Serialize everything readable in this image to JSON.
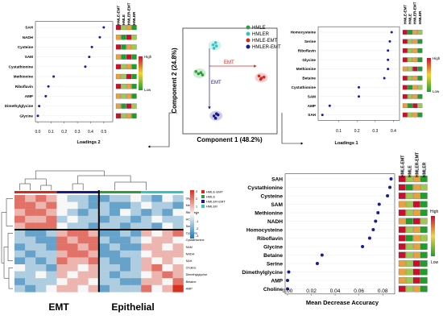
{
  "colors": {
    "hmle": "#2e9e3a",
    "hmler": "#34c4c4",
    "hmle_emt": "#d42a22",
    "hmler_emt": "#1a1a8c",
    "dot": "#1a1aa0",
    "scale_high": "#c8102e",
    "scale_mid": "#f2d43a",
    "scale_low": "#1f9e2c",
    "hm_high": "#d7301f",
    "hm_mid": "#f7f7f7",
    "hm_low": "#1f78b4"
  },
  "scale_labels": {
    "high": "High",
    "low": "Low"
  },
  "group_labels": [
    "HMLE-EMT",
    "HMLE",
    "HMLER-EMT",
    "HMLER"
  ],
  "heatmap_text": {
    "emt": "EMT",
    "epithelial": "Epithelial"
  },
  "chart_data": [
    {
      "id": "pca",
      "type": "scatter",
      "xlabel": "Component 1 (48.2%)",
      "ylabel": "Component 2 (24.8%)",
      "legend": [
        "HMLE",
        "HMLER",
        "HMLE-EMT",
        "HMLER-EMT"
      ],
      "legend_position": "top-right",
      "arrow_labels": [
        "EMT",
        "EMT"
      ],
      "groups": [
        {
          "name": "HMLE",
          "points": [
            [
              -3.4,
              0.6
            ],
            [
              -3.1,
              0.4
            ],
            [
              -2.8,
              0.5
            ],
            [
              -2.6,
              0.3
            ]
          ]
        },
        {
          "name": "HMLER",
          "points": [
            [
              -1.3,
              3.0
            ],
            [
              -1.0,
              3.2
            ],
            [
              -1.2,
              2.7
            ],
            [
              -0.9,
              2.9
            ]
          ]
        },
        {
          "name": "HMLE-EMT",
          "points": [
            [
              4.3,
              0.2
            ],
            [
              4.6,
              0.0
            ],
            [
              4.9,
              0.1
            ],
            [
              4.5,
              -0.1
            ]
          ]
        },
        {
          "name": "HMLER-EMT",
          "points": [
            [
              -1.2,
              -3.4
            ],
            [
              -0.9,
              -3.2
            ],
            [
              -1.0,
              -3.6
            ],
            [
              -0.7,
              -3.3
            ]
          ]
        }
      ]
    },
    {
      "id": "loadings2",
      "type": "scatter",
      "xlabel": "Loadings 2",
      "xlim": [
        0,
        0.55
      ],
      "xticks": [
        "0.0",
        "0.1",
        "0.2",
        "0.3",
        "0.4",
        "0.5"
      ],
      "categories": [
        "SAH",
        "NADH",
        "Cysteine",
        "SAM",
        "Cystathionine",
        "Methionine",
        "Riboflavin",
        "AMP",
        "Dimethylglycine",
        "Glycine"
      ],
      "values": [
        0.5,
        0.47,
        0.41,
        0.39,
        0.36,
        0.12,
        0.08,
        0.06,
        0.01,
        0.0
      ],
      "side_heatmap": [
        [
          3,
          1,
          2,
          0
        ],
        [
          2,
          0,
          3,
          1
        ],
        [
          3,
          0,
          2,
          1
        ],
        [
          2,
          0,
          3,
          0
        ],
        [
          3,
          1,
          2,
          0
        ],
        [
          2,
          1,
          3,
          0
        ],
        [
          3,
          1,
          2,
          0
        ],
        [
          2,
          1,
          2,
          0
        ],
        [
          2,
          0,
          3,
          1
        ],
        [
          3,
          1,
          2,
          0
        ]
      ]
    },
    {
      "id": "loadings1",
      "type": "scatter",
      "xlabel": "Loadings 1",
      "xlim": [
        0,
        0.42
      ],
      "xticks": [
        "0.1",
        "0.2",
        "0.3",
        "0.4"
      ],
      "categories": [
        "Homocysteine",
        "Serine",
        "Riboflavin",
        "Glycine",
        "Methionine",
        "Betaine",
        "Cystathionine",
        "SAM",
        "AMP",
        "SAH"
      ],
      "values": [
        0.39,
        0.38,
        0.37,
        0.37,
        0.37,
        0.35,
        0.21,
        0.21,
        0.05,
        0.01
      ],
      "side_heatmap": [
        [
          3,
          0,
          2,
          1
        ],
        [
          3,
          1,
          2,
          0
        ],
        [
          3,
          1,
          2,
          0
        ],
        [
          3,
          1,
          2,
          0
        ],
        [
          2,
          1,
          3,
          0
        ],
        [
          3,
          1,
          2,
          0
        ],
        [
          3,
          0,
          2,
          1
        ],
        [
          3,
          1,
          2,
          0
        ],
        [
          2,
          0,
          3,
          1
        ],
        [
          3,
          1,
          2,
          0
        ]
      ]
    },
    {
      "id": "heatmap",
      "type": "heatmap",
      "legend": [
        "HMLE-EMT",
        "HMLE",
        "HMLER-EMT",
        "HMLER"
      ],
      "colorbar_ticks": [
        "3",
        "2",
        "1",
        "0",
        "-1",
        "-2",
        "-3"
      ],
      "rows": [
        "Gly",
        "Met",
        "Riboflavin",
        "HCy",
        "Ser",
        "Cysteine",
        "Cystathionine",
        "SAM",
        "NADH",
        "SAH",
        "Choline",
        "Dimethylglycine",
        "Betaine",
        "AMP"
      ],
      "values": [
        [
          2,
          1,
          2,
          1,
          0,
          -1,
          -1,
          -2,
          -2,
          -1,
          -1,
          0,
          -1,
          -2,
          0,
          -1
        ],
        [
          2,
          2,
          1,
          2,
          0,
          0,
          -1,
          -2,
          -1,
          -2,
          -2,
          -1,
          0,
          -1,
          -1,
          -2
        ],
        [
          1,
          2,
          2,
          1,
          0,
          -1,
          -2,
          -1,
          -1,
          -2,
          0,
          -1,
          -2,
          -1,
          -2,
          0
        ],
        [
          2,
          1,
          1,
          2,
          -1,
          0,
          -1,
          -1,
          -2,
          -1,
          -1,
          -2,
          -1,
          0,
          -1,
          -1
        ],
        [
          1,
          2,
          2,
          2,
          0,
          -1,
          -1,
          -2,
          -1,
          -1,
          -2,
          -1,
          -1,
          -2,
          0,
          -1
        ],
        [
          -1,
          -2,
          -2,
          -1,
          1,
          2,
          2,
          1,
          -2,
          -2,
          -1,
          -2,
          1,
          0,
          1,
          2
        ],
        [
          -1,
          -1,
          -2,
          -2,
          2,
          1,
          2,
          2,
          -1,
          -2,
          -2,
          -1,
          0,
          1,
          1,
          0
        ],
        [
          -2,
          -1,
          -1,
          -2,
          2,
          2,
          1,
          2,
          -2,
          -1,
          -2,
          -2,
          1,
          1,
          0,
          1
        ],
        [
          -1,
          -2,
          -1,
          -1,
          1,
          2,
          2,
          1,
          -2,
          -2,
          -1,
          -1,
          0,
          1,
          1,
          1
        ],
        [
          -2,
          -1,
          -2,
          -1,
          2,
          1,
          1,
          2,
          -1,
          -2,
          -2,
          -1,
          1,
          0,
          1,
          0
        ],
        [
          0,
          -1,
          -1,
          -2,
          1,
          1,
          0,
          1,
          -1,
          -1,
          -2,
          -1,
          1,
          2,
          0,
          1
        ],
        [
          -1,
          -1,
          0,
          -1,
          1,
          0,
          1,
          1,
          -1,
          -2,
          -1,
          -1,
          0,
          1,
          2,
          1
        ],
        [
          -2,
          -1,
          -1,
          -1,
          0,
          1,
          1,
          0,
          -1,
          -1,
          -2,
          -2,
          1,
          1,
          0,
          2
        ],
        [
          -1,
          -2,
          -1,
          0,
          1,
          1,
          0,
          1,
          -2,
          -1,
          -1,
          -1,
          2,
          0,
          1,
          3
        ]
      ]
    },
    {
      "id": "importance",
      "type": "scatter",
      "xlabel": "Mean Decrease Accuracy",
      "xlim": [
        0,
        0.088
      ],
      "xticks": [
        "0.00",
        "0.02",
        "0.04",
        "0.06",
        "0.08"
      ],
      "categories": [
        "SAH",
        "Cystathionine",
        "Cysteine",
        "SAM",
        "Methionine",
        "NADH",
        "Homocysteine",
        "Riboflavin",
        "Glycine",
        "Betaine",
        "Serine",
        "Dimethylglycine",
        "AMP",
        "Choline"
      ],
      "values": [
        0.087,
        0.086,
        0.084,
        0.077,
        0.076,
        0.074,
        0.072,
        0.069,
        0.063,
        0.029,
        0.025,
        0.001,
        0.0,
        0.0
      ],
      "side_heatmap": [
        [
          3,
          1,
          2,
          0
        ],
        [
          3,
          0,
          2,
          1
        ],
        [
          3,
          1,
          2,
          0
        ],
        [
          2,
          1,
          3,
          0
        ],
        [
          3,
          1,
          2,
          0
        ],
        [
          2,
          0,
          3,
          1
        ],
        [
          3,
          1,
          2,
          0
        ],
        [
          3,
          0,
          2,
          1
        ],
        [
          3,
          1,
          2,
          0
        ],
        [
          3,
          1,
          2,
          0
        ],
        [
          2,
          1,
          3,
          0
        ],
        [
          2,
          1,
          3,
          0
        ],
        [
          2,
          1,
          3,
          0
        ],
        [
          3,
          1,
          2,
          0
        ]
      ]
    }
  ]
}
